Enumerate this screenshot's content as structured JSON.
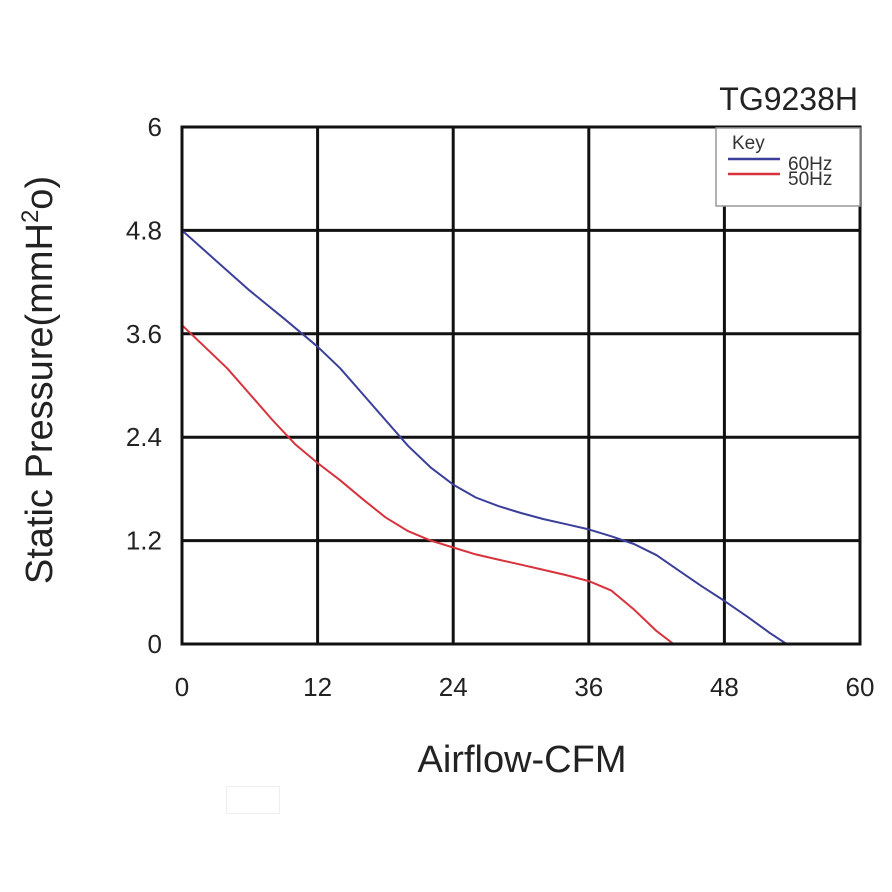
{
  "chart_data": {
    "type": "line",
    "title": "TG9238H",
    "xlabel": "Airflow-CFM",
    "ylabel": "Static Pressure(mmH²o)",
    "xlim": [
      0,
      60
    ],
    "ylim": [
      0,
      6
    ],
    "x_ticks": [
      "0",
      "12",
      "24",
      "36",
      "48",
      "60"
    ],
    "y_ticks": [
      "0",
      "1.2",
      "2.4",
      "3.6",
      "4.8",
      "6"
    ],
    "grid": true,
    "legend": {
      "title": "Key",
      "placement": "top-right"
    },
    "series": [
      {
        "name": "60Hz",
        "color": "#3b3f9a",
        "x": [
          0,
          3,
          6,
          9,
          12,
          14,
          16,
          18,
          20,
          22,
          24,
          26,
          28,
          30,
          32,
          34,
          36,
          38,
          40,
          42,
          44,
          46,
          48,
          50,
          52,
          53.5
        ],
        "y": [
          4.8,
          4.45,
          4.1,
          3.78,
          3.45,
          3.2,
          2.9,
          2.6,
          2.3,
          2.05,
          1.85,
          1.7,
          1.6,
          1.52,
          1.45,
          1.39,
          1.33,
          1.25,
          1.16,
          1.03,
          0.85,
          0.67,
          0.5,
          0.32,
          0.13,
          0
        ]
      },
      {
        "name": "50Hz",
        "color": "#d8323c",
        "x": [
          0,
          2,
          4,
          6,
          8,
          10,
          12,
          14,
          16,
          18,
          20,
          22,
          24,
          26,
          28,
          30,
          32,
          34,
          36,
          38,
          40,
          42,
          43.5
        ],
        "y": [
          3.7,
          3.45,
          3.2,
          2.9,
          2.6,
          2.32,
          2.1,
          1.9,
          1.68,
          1.47,
          1.31,
          1.2,
          1.12,
          1.04,
          0.98,
          0.92,
          0.86,
          0.8,
          0.73,
          0.62,
          0.4,
          0.15,
          0
        ]
      }
    ]
  }
}
